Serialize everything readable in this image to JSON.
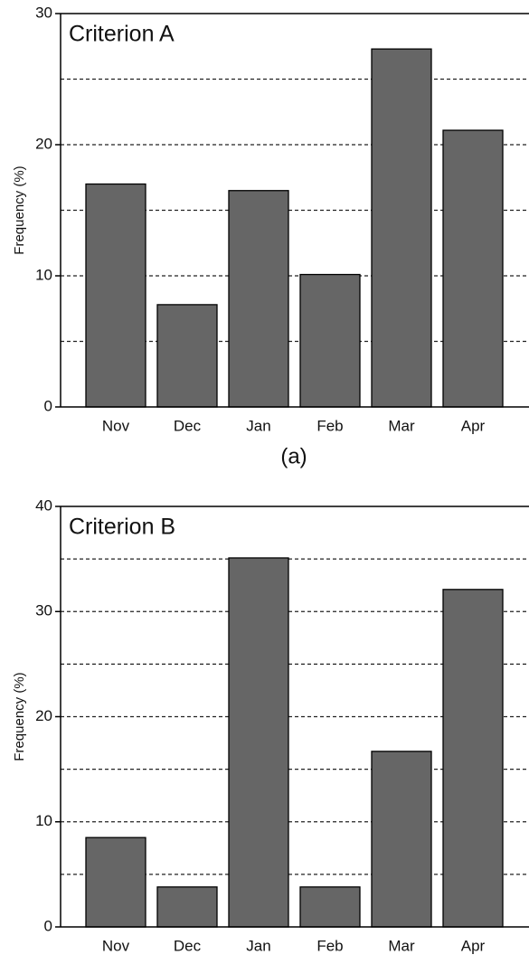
{
  "chart_data": [
    {
      "type": "bar",
      "title": "Criterion A",
      "panel_label": "(a)",
      "y_label": "Frequency (%)",
      "categories": [
        "Nov",
        "Dec",
        "Jan",
        "Feb",
        "Mar",
        "Apr"
      ],
      "values": [
        17,
        7.8,
        16.5,
        10.1,
        27.3,
        21.1
      ],
      "color": "#666666",
      "ylim": [
        0,
        30
      ],
      "yticks": [
        0,
        10,
        20,
        30
      ],
      "ygrid": [
        5,
        10,
        15,
        20,
        25
      ],
      "grid": true
    },
    {
      "type": "bar",
      "title": "Criterion B",
      "panel_label": "(b)",
      "y_label": "Frequency (%)",
      "categories": [
        "Nov",
        "Dec",
        "Jan",
        "Feb",
        "Mar",
        "Apr"
      ],
      "values": [
        8.5,
        3.8,
        35.1,
        3.8,
        16.7,
        32.1
      ],
      "color": "#666666",
      "ylim": [
        0,
        40
      ],
      "yticks": [
        0,
        10,
        20,
        30,
        40
      ],
      "ygrid": [
        5,
        10,
        15,
        20,
        25,
        30,
        35
      ],
      "grid": true
    }
  ]
}
